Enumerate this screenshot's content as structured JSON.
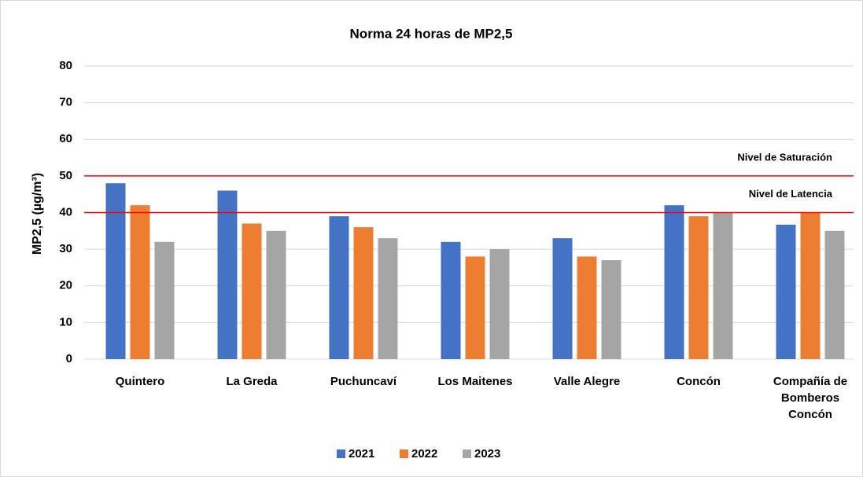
{
  "chart_data": {
    "type": "bar",
    "title": "Norma  24 horas de MP2,5",
    "ylabel": "MP2,5 (µg/m³)",
    "categories": [
      "Quintero",
      "La Greda",
      "Puchuncaví",
      "Los Maitenes",
      "Valle Alegre",
      "Concón",
      "Compañía de Bomberos Concón"
    ],
    "series": [
      {
        "name": "2021",
        "color": "#4472c4",
        "values": [
          48,
          46,
          39,
          32,
          33,
          42,
          36.7
        ]
      },
      {
        "name": "2022",
        "color": "#ed7d31",
        "values": [
          42,
          37,
          36,
          28,
          28,
          39,
          40
        ]
      },
      {
        "name": "2023",
        "color": "#a5a5a5",
        "values": [
          32,
          35,
          33,
          30,
          27,
          40,
          35
        ]
      }
    ],
    "reference_lines": [
      {
        "value": 50,
        "label": "Nivel de Saturación",
        "color": "#ff0000"
      },
      {
        "value": 40,
        "label": "Nivel de Latencia",
        "color": "#ff0000"
      }
    ],
    "ylim": [
      0,
      80
    ],
    "yticks": [
      0,
      10,
      20,
      30,
      40,
      50,
      60,
      70,
      80
    ],
    "grid": true,
    "legend": "bottom"
  }
}
